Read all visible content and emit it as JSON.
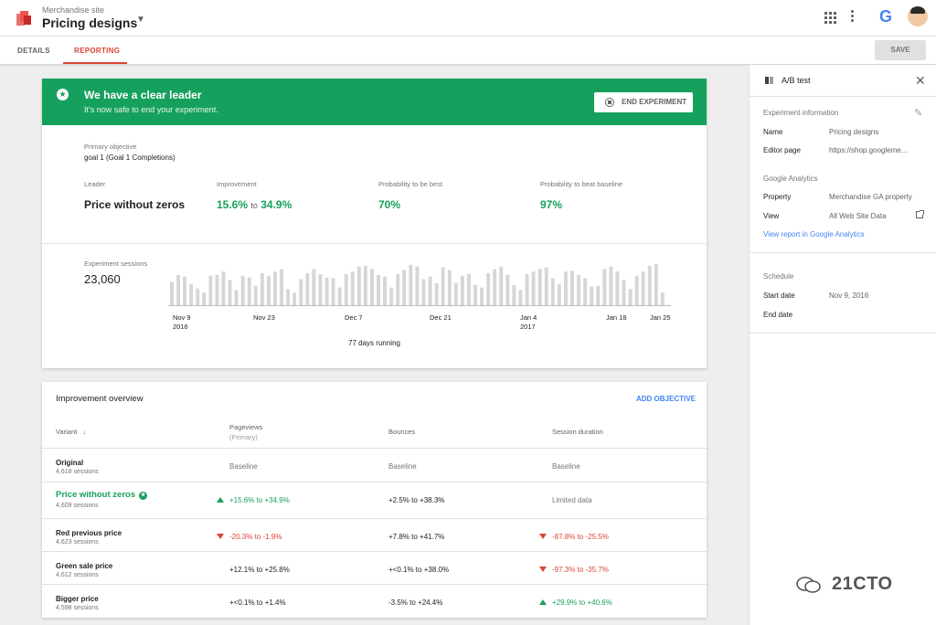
{
  "header": {
    "site_label": "Merchandise site",
    "page_title": "Pricing designs",
    "google_letter": "G"
  },
  "tabs": [
    {
      "label": "DETAILS"
    },
    {
      "label": "REPORTING",
      "active": true
    }
  ],
  "toolbar": {
    "save_label": "SAVE"
  },
  "banner": {
    "title": "We have a clear leader",
    "subtitle": "It's now safe to end your experiment.",
    "end_button": "END EXPERIMENT",
    "color": "#16a05d"
  },
  "summary": {
    "primary_objective_label": "Primary objective",
    "primary_objective_value": "goal 1 (Goal 1 Completions)",
    "leader_label": "Leader",
    "leader_value": "Price without zeros",
    "improvement_label": "Improvement",
    "improvement_low": "15.6%",
    "improvement_to": "to",
    "improvement_high": "34.9%",
    "prob_best_label": "Probability to be best",
    "prob_best_value": "70%",
    "prob_baseline_label": "Probability to beat baseline",
    "prob_baseline_value": "97%"
  },
  "sessions": {
    "label": "Experiment sessions",
    "value": "23,060",
    "days_running": "77 days running",
    "x_ticks": [
      {
        "label": "Nov 9",
        "sub": "2016"
      },
      {
        "label": "Nov 23",
        "sub": ""
      },
      {
        "label": "Dec 7",
        "sub": ""
      },
      {
        "label": "Dec 21",
        "sub": ""
      },
      {
        "label": "Jan 4",
        "sub": "2017"
      },
      {
        "label": "Jan 18",
        "sub": ""
      },
      {
        "label": "Jan 25",
        "sub": ""
      }
    ]
  },
  "chart_data": {
    "type": "bar",
    "title": "",
    "xlabel": "",
    "ylabel": "",
    "bar_color": "#d6d6d6",
    "values": [
      0.55,
      0.72,
      0.68,
      0.5,
      0.4,
      0.3,
      0.7,
      0.72,
      0.8,
      0.6,
      0.36,
      0.7,
      0.66,
      0.46,
      0.76,
      0.7,
      0.8,
      0.86,
      0.38,
      0.3,
      0.62,
      0.76,
      0.86,
      0.74,
      0.66,
      0.64,
      0.42,
      0.74,
      0.8,
      0.92,
      0.94,
      0.86,
      0.72,
      0.68,
      0.42,
      0.74,
      0.84,
      0.96,
      0.92,
      0.62,
      0.68,
      0.52,
      0.9,
      0.84,
      0.52,
      0.7,
      0.74,
      0.48,
      0.42,
      0.76,
      0.86,
      0.92,
      0.72,
      0.48,
      0.36,
      0.74,
      0.8,
      0.86,
      0.9,
      0.64,
      0.5,
      0.8,
      0.82,
      0.72,
      0.64,
      0.44,
      0.46,
      0.86,
      0.92,
      0.8,
      0.6,
      0.38,
      0.7,
      0.8,
      0.94,
      0.98,
      0.3
    ]
  },
  "overview": {
    "title": "Improvement overview",
    "add_objective": "ADD OBJECTIVE",
    "columns": {
      "variant": "Variant",
      "pageviews": "Pageviews",
      "pageviews_sub": "(Primary)",
      "bounces": "Bounces",
      "duration": "Session duration"
    },
    "rows": [
      {
        "name": "Original",
        "sessions": "4,618 sessions",
        "pageviews": "Baseline",
        "bounces": "Baseline",
        "duration": "Baseline"
      },
      {
        "name": "Price without zeros",
        "sessions": "4,609 sessions",
        "pageviews": "+15.6% to +34.9%",
        "bounces": "+2.5% to +38.3%",
        "duration": "Limited data"
      },
      {
        "name": "Red previous price",
        "sessions": "4,623 sessions",
        "pageviews": "-20.3% to -1.9%",
        "bounces": "+7.8% to +41.7%",
        "duration": "-87.8% to -25.5%"
      },
      {
        "name": "Green sale price",
        "sessions": "4,612 sessions",
        "pageviews": "+12.1% to +25.8%",
        "bounces": "+<0.1% to +38.0%",
        "duration": "-97.3% to -35.7%"
      },
      {
        "name": "Bigger price",
        "sessions": "4,598 sessions",
        "pageviews": "+<0.1% to +1.4%",
        "bounces": "-3.5% to +24.4%",
        "duration": "+29.9% to +40.6%"
      }
    ]
  },
  "right_panel": {
    "title": "A/B test",
    "info_section": "Experiment information",
    "name_key": "Name",
    "name_value": "Pricing designs",
    "editor_key": "Editor page",
    "editor_value": "https://shop.googleme...",
    "ga_section": "Google Analytics",
    "property_key": "Property",
    "property_value": "Merchandise GA property",
    "view_key": "View",
    "view_value": "All Web Site Data",
    "view_report_link": "View report in Google Analytics",
    "schedule_section": "Schedule",
    "start_key": "Start date",
    "start_value": "Nov 9, 2016",
    "end_key": "End date"
  },
  "watermark": "21CTO"
}
